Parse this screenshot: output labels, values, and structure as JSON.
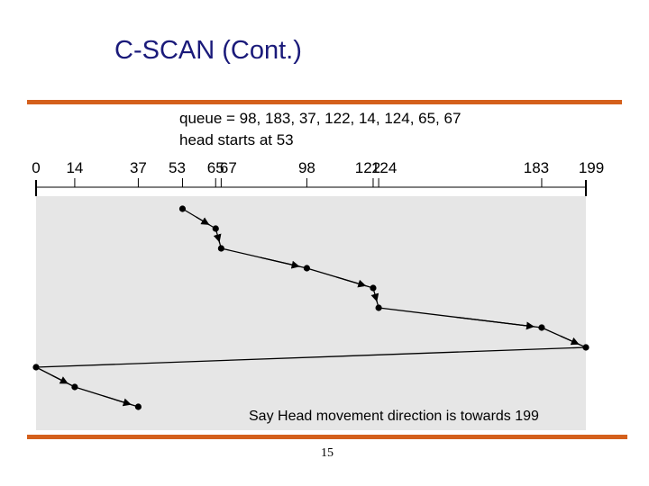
{
  "slide": {
    "title": "C-SCAN (Cont.)",
    "queue_text": "queue = 98, 183, 37, 122, 14, 124, 65, 67",
    "head_text": "head starts at 53",
    "caption": "Say Head movement direction is towards 199",
    "page_number": "15",
    "accent_color": "#d4601c",
    "title_color": "#1a1a7a"
  },
  "diagram": {
    "axis_ticks": [
      0,
      14,
      37,
      53,
      65,
      67,
      98,
      122,
      124,
      183,
      199
    ],
    "cylinder_range": [
      0,
      199
    ],
    "queue": [
      98,
      183,
      37,
      122,
      14,
      124,
      65,
      67
    ],
    "head_start": 53,
    "service_order": [
      53,
      65,
      67,
      98,
      122,
      124,
      183,
      199,
      0,
      14,
      37
    ]
  }
}
